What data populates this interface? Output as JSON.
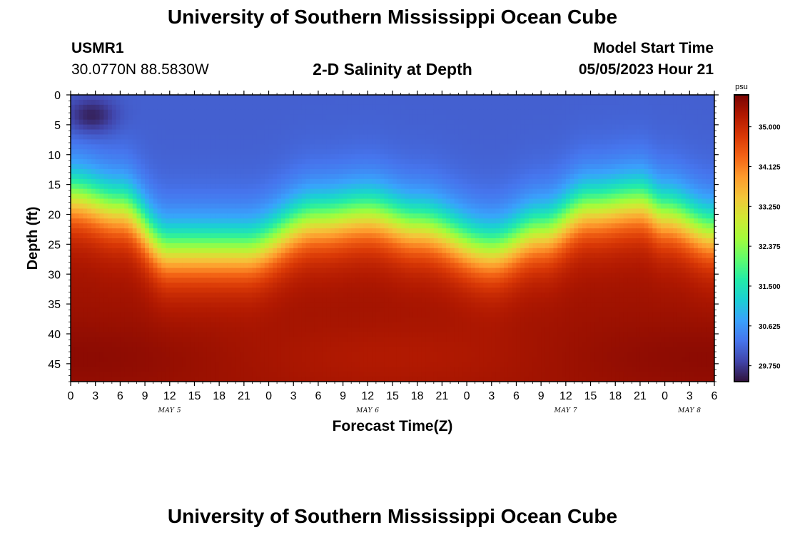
{
  "page_title": "University of Southern Mississippi Ocean Cube",
  "station": {
    "id": "USMR1",
    "coords": "30.0770N  88.5830W"
  },
  "model_start": {
    "label": "Model Start Time",
    "value": "05/05/2023 Hour 21"
  },
  "chart_data": {
    "type": "heatmap",
    "title": "2-D Salinity at Depth",
    "xlabel": "Forecast Time(Z)",
    "ylabel": "Depth (ft)",
    "x_hours_range": [
      0,
      78
    ],
    "y_range": [
      0,
      48
    ],
    "y_ticks": [
      "0",
      "5",
      "10",
      "15",
      "20",
      "25",
      "30",
      "35",
      "40",
      "45"
    ],
    "x_ticks": [
      "0",
      "3",
      "6",
      "9",
      "12",
      "15",
      "18",
      "21",
      "0",
      "3",
      "6",
      "9",
      "12",
      "15",
      "18",
      "21",
      "0",
      "3",
      "6",
      "9",
      "12",
      "15",
      "18",
      "21",
      "0",
      "3",
      "6"
    ],
    "day_labels": [
      {
        "text": "MAY 5",
        "hour": 12
      },
      {
        "text": "MAY 6",
        "hour": 36
      },
      {
        "text": "MAY 7",
        "hour": 60
      },
      {
        "text": "MAY 8",
        "hour": 75
      }
    ],
    "colorbar": {
      "unit": "psu",
      "min": 29.4,
      "max": 35.7,
      "tick_labels": [
        "35.000",
        "34.125",
        "33.250",
        "32.375",
        "31.500",
        "30.625",
        "29.750"
      ],
      "colors": [
        "#30123b",
        "#4145ab",
        "#4675ed",
        "#39a2fc",
        "#1bcfd4",
        "#24eca6",
        "#61fc6c",
        "#a4fc3b",
        "#d1e834",
        "#f3c63a",
        "#fe9b2d",
        "#f36315",
        "#d93806",
        "#b11901",
        "#7a0402"
      ]
    },
    "halocline_depth_ft_at_hour": [
      {
        "hour": 0,
        "depth": 17
      },
      {
        "hour": 6,
        "depth": 19
      },
      {
        "hour": 12,
        "depth": 26
      },
      {
        "hour": 21,
        "depth": 26
      },
      {
        "hour": 30,
        "depth": 21
      },
      {
        "hour": 36,
        "depth": 20
      },
      {
        "hour": 42,
        "depth": 22
      },
      {
        "hour": 51,
        "depth": 26
      },
      {
        "hour": 57,
        "depth": 23
      },
      {
        "hour": 63,
        "depth": 19
      },
      {
        "hour": 69,
        "depth": 18
      },
      {
        "hour": 72,
        "depth": 20
      },
      {
        "hour": 78,
        "depth": 23
      }
    ],
    "surface_salinity_psu": 30.1,
    "fresh_pocket": {
      "hour_range": [
        0,
        5
      ],
      "depth_range": [
        1,
        6
      ],
      "salinity_psu": 29.5
    },
    "bottom_salinity_psu": 35.4
  },
  "footer_title": "University of Southern Mississippi Ocean Cube"
}
